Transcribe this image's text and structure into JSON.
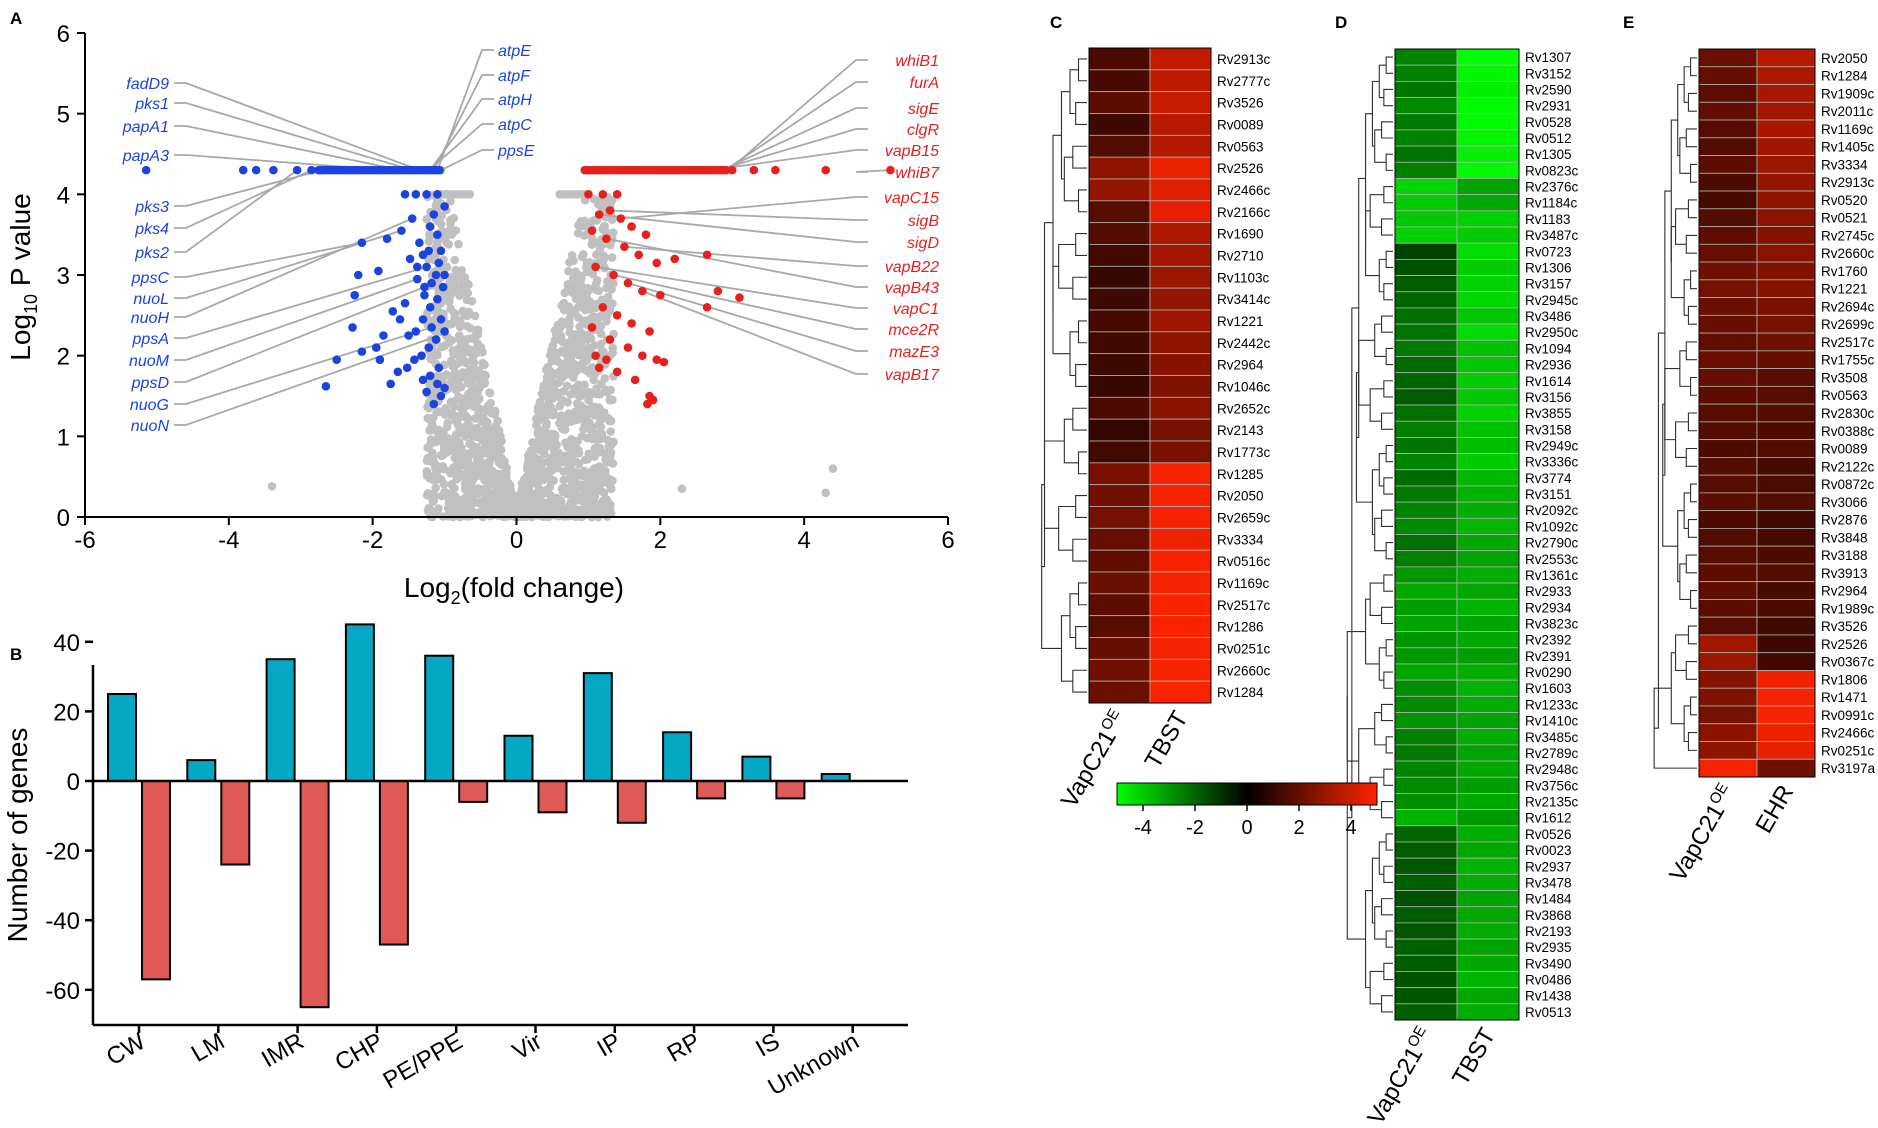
{
  "chart_data": [
    {
      "panel": "A",
      "type": "scatter",
      "title": "",
      "xlabel_base": "Log",
      "xlabel_sub": "2",
      "xlabel_rest": "(fold change)",
      "ylabel_base": "Log",
      "ylabel_sub": "10",
      "ylabel_rest": " P value",
      "xlim": [
        -6,
        6
      ],
      "ylim": [
        0,
        6
      ],
      "xticks": [
        "-6",
        "-4",
        "-2",
        "0",
        "2",
        "4",
        "6"
      ],
      "yticks": [
        "0",
        "1",
        "2",
        "3",
        "4",
        "5",
        "6"
      ],
      "colors": {
        "down": "#1a43e0",
        "up": "#e8201c",
        "ns": "#c0c0c0"
      },
      "down_points": [
        [
          -5.15,
          4.3
        ],
        [
          -3.8,
          4.3
        ],
        [
          -3.62,
          4.3
        ],
        [
          -3.38,
          4.3
        ],
        [
          -3.05,
          4.3
        ],
        [
          -2.85,
          4.3
        ],
        [
          -2.7,
          4.3
        ],
        [
          -1.55,
          4.0
        ],
        [
          -1.4,
          4.0
        ],
        [
          -1.25,
          4.0
        ],
        [
          -1.1,
          4.0
        ],
        [
          -2.15,
          3.4
        ],
        [
          -2.2,
          3.0
        ],
        [
          -1.92,
          3.05
        ],
        [
          -1.8,
          3.45
        ],
        [
          -1.6,
          3.55
        ],
        [
          -1.45,
          3.7
        ],
        [
          -1.35,
          3.4
        ],
        [
          -1.3,
          3.25
        ],
        [
          -1.25,
          3.1
        ],
        [
          -1.2,
          3.6
        ],
        [
          -1.15,
          3.75
        ],
        [
          -1.1,
          3.5
        ],
        [
          -1.05,
          3.3
        ],
        [
          -1.0,
          3.85
        ],
        [
          -1.08,
          3.15
        ],
        [
          -1.18,
          2.9
        ],
        [
          -1.28,
          2.85
        ],
        [
          -1.38,
          2.95
        ],
        [
          -1.55,
          2.65
        ],
        [
          -1.62,
          2.45
        ],
        [
          -1.72,
          2.55
        ],
        [
          -1.85,
          2.25
        ],
        [
          -1.95,
          2.1
        ],
        [
          -2.15,
          2.05
        ],
        [
          -2.25,
          2.75
        ],
        [
          -2.28,
          2.35
        ],
        [
          -1.5,
          2.25
        ],
        [
          -1.4,
          2.3
        ],
        [
          -1.3,
          2.45
        ],
        [
          -1.2,
          2.6
        ],
        [
          -1.1,
          2.7
        ],
        [
          -1.05,
          2.45
        ],
        [
          -1.0,
          2.3
        ],
        [
          -1.12,
          2.2
        ],
        [
          -1.22,
          2.1
        ],
        [
          -1.32,
          2.0
        ],
        [
          -1.42,
          1.95
        ],
        [
          -1.52,
          1.85
        ],
        [
          -1.65,
          1.8
        ],
        [
          -1.75,
          1.65
        ],
        [
          -1.9,
          1.95
        ],
        [
          -2.5,
          1.95
        ],
        [
          -2.65,
          1.62
        ],
        [
          -1.2,
          1.75
        ],
        [
          -1.1,
          1.65
        ],
        [
          -1.05,
          1.5
        ],
        [
          -1.15,
          1.4
        ],
        [
          -1.25,
          1.55
        ],
        [
          -1.3,
          1.7
        ],
        [
          -1.0,
          1.6
        ],
        [
          -1.08,
          1.85
        ],
        [
          -1.18,
          2.35
        ],
        [
          -1.28,
          2.75
        ],
        [
          -1.38,
          3.1
        ],
        [
          -1.48,
          3.2
        ],
        [
          -1.0,
          3.0
        ],
        [
          -1.02,
          2.85
        ],
        [
          -1.12,
          3.0
        ],
        [
          -1.22,
          3.3
        ]
      ],
      "up_points": [
        [
          1.0,
          4.0
        ],
        [
          1.2,
          4.0
        ],
        [
          1.4,
          4.0
        ],
        [
          3.0,
          4.3
        ],
        [
          3.3,
          4.3
        ],
        [
          3.6,
          4.3
        ],
        [
          4.3,
          4.3
        ],
        [
          5.2,
          4.3
        ],
        [
          1.15,
          3.75
        ],
        [
          1.3,
          3.8
        ],
        [
          1.45,
          3.7
        ],
        [
          1.6,
          3.6
        ],
        [
          1.8,
          3.5
        ],
        [
          1.05,
          3.55
        ],
        [
          1.25,
          3.45
        ],
        [
          1.5,
          3.35
        ],
        [
          1.7,
          3.25
        ],
        [
          1.95,
          3.15
        ],
        [
          2.2,
          3.2
        ],
        [
          2.65,
          3.25
        ],
        [
          1.1,
          3.1
        ],
        [
          1.35,
          3.0
        ],
        [
          1.55,
          2.9
        ],
        [
          1.75,
          2.8
        ],
        [
          2.0,
          2.75
        ],
        [
          2.8,
          2.8
        ],
        [
          3.1,
          2.72
        ],
        [
          2.65,
          2.6
        ],
        [
          1.2,
          2.6
        ],
        [
          1.4,
          2.5
        ],
        [
          1.6,
          2.4
        ],
        [
          1.85,
          2.3
        ],
        [
          1.05,
          2.35
        ],
        [
          1.3,
          2.2
        ],
        [
          1.55,
          2.1
        ],
        [
          1.75,
          2.0
        ],
        [
          1.95,
          1.95
        ],
        [
          2.05,
          1.92
        ],
        [
          1.15,
          1.85
        ],
        [
          1.4,
          1.8
        ],
        [
          1.65,
          1.7
        ],
        [
          1.9,
          1.45
        ],
        [
          1.82,
          1.4
        ],
        [
          1.85,
          1.5
        ],
        [
          1.1,
          2.0
        ],
        [
          1.25,
          1.95
        ]
      ],
      "ns_band": [
        [
          -2.75,
          4.3
        ],
        [
          -1.05,
          4.3
        ],
        [
          0.95,
          4.3
        ],
        [
          2.95,
          4.3
        ]
      ],
      "ns_outliers": [
        [
          -3.4,
          0.38
        ],
        [
          2.3,
          0.35
        ],
        [
          4.4,
          0.6
        ],
        [
          4.3,
          0.3
        ]
      ],
      "down_labels": [
        "fadD9",
        "pks1",
        "papA1",
        "papA3",
        "pks3",
        "pks4",
        "pks2",
        "ppsC",
        "nuoL",
        "nuoH",
        "ppsA",
        "nuoM",
        "ppsD",
        "nuoG",
        "nuoN"
      ],
      "mid_labels": [
        "atpE",
        "atpF",
        "atpH",
        "atpC",
        "ppsE"
      ],
      "up_labels": [
        "whiB1",
        "furA",
        "sigE",
        "clgR",
        "vapB15",
        "whiB7",
        "vapC15",
        "sigB",
        "sigD",
        "vapB22",
        "vapB43",
        "vapC1",
        "mce2R",
        "mazE3",
        "vapB17"
      ]
    },
    {
      "panel": "B",
      "type": "bar",
      "title": "",
      "xlabel": "",
      "ylabel": "Number of genes",
      "ylim": [
        -70,
        50
      ],
      "yticks": [
        "-60",
        "-40",
        "-20",
        "0",
        "20",
        "40"
      ],
      "categories": [
        "CW",
        "LM",
        "IMR",
        "CHP",
        "PE/PPE",
        "Vir",
        "IP",
        "RP",
        "IS",
        "Unknown"
      ],
      "series": [
        {
          "name": "up",
          "color": "#05a8c4",
          "values": [
            25,
            6,
            35,
            45,
            36,
            13,
            31,
            14,
            7,
            2
          ]
        },
        {
          "name": "down",
          "color": "#df5a56",
          "values": [
            -57,
            -24,
            -65,
            -47,
            -6,
            -9,
            -12,
            -5,
            -5,
            0
          ]
        }
      ]
    },
    {
      "panel": "C",
      "type": "heatmap",
      "columns": [
        "VapC21",
        "TBST"
      ],
      "column_superscripts": [
        "OE",
        ""
      ],
      "rows": [
        "Rv2913c",
        "Rv2777c",
        "Rv3526",
        "Rv0089",
        "Rv0563",
        "Rv2526",
        "Rv2466c",
        "Rv2166c",
        "Rv1690",
        "Rv2710",
        "Rv1103c",
        "Rv3414c",
        "Rv1221",
        "Rv2442c",
        "Rv2964",
        "Rv1046c",
        "Rv2652c",
        "Rv2143",
        "Rv1773c",
        "Rv1285",
        "Rv2050",
        "Rv2659c",
        "Rv3334",
        "Rv0516c",
        "Rv1169c",
        "Rv2517c",
        "Rv1286",
        "Rv0251c",
        "Rv2660c",
        "Rv1284"
      ],
      "values": [
        [
          1.5,
          3.8
        ],
        [
          1.4,
          3.7
        ],
        [
          1.8,
          3.9
        ],
        [
          1.2,
          3.6
        ],
        [
          1.6,
          3.5
        ],
        [
          2.8,
          4.6
        ],
        [
          2.9,
          4.4
        ],
        [
          1.7,
          4.5
        ],
        [
          1.6,
          3.4
        ],
        [
          1.3,
          3.2
        ],
        [
          1.1,
          3.0
        ],
        [
          1.2,
          2.9
        ],
        [
          1.4,
          3.1
        ],
        [
          1.3,
          2.8
        ],
        [
          1.2,
          2.6
        ],
        [
          1.1,
          2.5
        ],
        [
          1.5,
          2.7
        ],
        [
          1.0,
          2.3
        ],
        [
          1.3,
          2.4
        ],
        [
          2.4,
          4.8
        ],
        [
          2.2,
          4.9
        ],
        [
          2.3,
          4.8
        ],
        [
          2.0,
          4.7
        ],
        [
          1.9,
          4.9
        ],
        [
          2.1,
          4.8
        ],
        [
          1.8,
          4.9
        ],
        [
          1.7,
          4.9
        ],
        [
          2.0,
          4.8
        ],
        [
          2.2,
          4.9
        ],
        [
          2.1,
          4.9
        ]
      ],
      "colorbar": {
        "ticks": [
          "-4",
          "-2",
          "0",
          "2",
          "4"
        ],
        "range": [
          -5,
          5
        ]
      }
    },
    {
      "panel": "D",
      "type": "heatmap",
      "columns": [
        "VapC21",
        "TBST"
      ],
      "column_superscripts": [
        "OE",
        ""
      ],
      "rows": [
        "Rv1307",
        "Rv3152",
        "Rv2590",
        "Rv2931",
        "Rv0528",
        "Rv0512",
        "Rv1305",
        "Rv0823c",
        "Rv2376c",
        "Rv1184c",
        "Rv1183",
        "Rv3487c",
        "Rv0723",
        "Rv1306",
        "Rv3157",
        "Rv2945c",
        "Rv3486",
        "Rv2950c",
        "Rv1094",
        "Rv2936",
        "Rv1614",
        "Rv3156",
        "Rv3855",
        "Rv3158",
        "Rv2949c",
        "Rv3336c",
        "Rv3774",
        "Rv3151",
        "Rv2092c",
        "Rv1092c",
        "Rv2790c",
        "Rv2553c",
        "Rv1361c",
        "Rv2933",
        "Rv2934",
        "Rv3823c",
        "Rv2392",
        "Rv2391",
        "Rv0290",
        "Rv1603",
        "Rv1233c",
        "Rv1410c",
        "Rv3485c",
        "Rv2789c",
        "Rv2948c",
        "Rv3756c",
        "Rv2135c",
        "Rv1612",
        "Rv0526",
        "Rv0023",
        "Rv2937",
        "Rv3478",
        "Rv1484",
        "Rv3868",
        "Rv2193",
        "Rv2935",
        "Rv3490",
        "Rv0486",
        "Rv1438",
        "Rv0513"
      ],
      "values": [
        [
          -2.6,
          -5.0
        ],
        [
          -2.5,
          -4.8
        ],
        [
          -2.3,
          -4.7
        ],
        [
          -2.7,
          -4.9
        ],
        [
          -2.4,
          -4.9
        ],
        [
          -2.6,
          -4.8
        ],
        [
          -2.3,
          -4.7
        ],
        [
          -2.5,
          -4.9
        ],
        [
          -4.2,
          -3.2
        ],
        [
          -4.0,
          -3.3
        ],
        [
          -3.9,
          -4.1
        ],
        [
          -4.1,
          -4.0
        ],
        [
          -1.3,
          -4.3
        ],
        [
          -1.6,
          -4.0
        ],
        [
          -1.8,
          -4.1
        ],
        [
          -2.0,
          -4.2
        ],
        [
          -2.2,
          -3.9
        ],
        [
          -2.3,
          -4.3
        ],
        [
          -2.4,
          -3.8
        ],
        [
          -2.1,
          -3.9
        ],
        [
          -2.0,
          -4.0
        ],
        [
          -1.8,
          -3.9
        ],
        [
          -2.2,
          -4.1
        ],
        [
          -2.5,
          -3.8
        ],
        [
          -2.3,
          -3.7
        ],
        [
          -2.6,
          -4.0
        ],
        [
          -2.1,
          -3.6
        ],
        [
          -2.4,
          -3.5
        ],
        [
          -2.6,
          -3.4
        ],
        [
          -2.7,
          -3.6
        ],
        [
          -2.2,
          -3.3
        ],
        [
          -2.5,
          -3.2
        ],
        [
          -3.0,
          -3.4
        ],
        [
          -3.3,
          -3.3
        ],
        [
          -3.1,
          -3.5
        ],
        [
          -3.2,
          -3.2
        ],
        [
          -2.9,
          -3.3
        ],
        [
          -3.0,
          -3.1
        ],
        [
          -3.3,
          -3.4
        ],
        [
          -2.8,
          -3.5
        ],
        [
          -2.7,
          -3.4
        ],
        [
          -2.9,
          -3.2
        ],
        [
          -2.5,
          -3.4
        ],
        [
          -2.4,
          -3.2
        ],
        [
          -2.6,
          -3.3
        ],
        [
          -2.7,
          -3.1
        ],
        [
          -2.8,
          -3.3
        ],
        [
          -3.5,
          -3.0
        ],
        [
          -2.0,
          -3.4
        ],
        [
          -1.8,
          -3.3
        ],
        [
          -1.7,
          -3.5
        ],
        [
          -1.9,
          -3.4
        ],
        [
          -1.6,
          -3.2
        ],
        [
          -1.8,
          -3.3
        ],
        [
          -1.7,
          -3.4
        ],
        [
          -1.9,
          -3.2
        ],
        [
          -1.8,
          -3.3
        ],
        [
          -1.6,
          -3.5
        ],
        [
          -1.7,
          -3.3
        ],
        [
          -1.9,
          -3.4
        ]
      ]
    },
    {
      "panel": "E",
      "type": "heatmap",
      "columns": [
        "VapC21",
        "EHR"
      ],
      "column_superscripts": [
        "OE",
        ""
      ],
      "rows": [
        "Rv2050",
        "Rv1284",
        "Rv1909c",
        "Rv2011c",
        "Rv1169c",
        "Rv1405c",
        "Rv3334",
        "Rv2913c",
        "Rv0520",
        "Rv0521",
        "Rv2745c",
        "Rv2660c",
        "Rv1760",
        "Rv1221",
        "Rv2694c",
        "Rv2699c",
        "Rv2517c",
        "Rv1755c",
        "Rv3508",
        "Rv0563",
        "Rv2830c",
        "Rv0388c",
        "Rv0089",
        "Rv2122c",
        "Rv0872c",
        "Rv3066",
        "Rv2876",
        "Rv3848",
        "Rv3188",
        "Rv3913",
        "Rv2964",
        "Rv1989c",
        "Rv3526",
        "Rv2526",
        "Rv0367c",
        "Rv1806",
        "Rv1471",
        "Rv0991c",
        "Rv2466c",
        "Rv0251c",
        "Rv3197a"
      ],
      "values": [
        [
          2.1,
          3.6
        ],
        [
          2.0,
          3.4
        ],
        [
          1.8,
          3.3
        ],
        [
          1.9,
          3.2
        ],
        [
          1.7,
          3.3
        ],
        [
          1.6,
          3.1
        ],
        [
          1.8,
          3.0
        ],
        [
          1.5,
          2.9
        ],
        [
          1.4,
          2.8
        ],
        [
          1.6,
          2.7
        ],
        [
          1.9,
          2.6
        ],
        [
          2.0,
          2.7
        ],
        [
          2.2,
          2.5
        ],
        [
          2.3,
          2.6
        ],
        [
          2.1,
          2.4
        ],
        [
          2.0,
          2.3
        ],
        [
          1.9,
          2.2
        ],
        [
          2.1,
          2.0
        ],
        [
          2.0,
          1.8
        ],
        [
          1.8,
          1.7
        ],
        [
          1.7,
          1.6
        ],
        [
          1.6,
          1.5
        ],
        [
          1.5,
          1.6
        ],
        [
          1.6,
          1.4
        ],
        [
          1.7,
          1.5
        ],
        [
          1.8,
          1.6
        ],
        [
          1.5,
          1.3
        ],
        [
          1.6,
          1.4
        ],
        [
          1.7,
          1.5
        ],
        [
          1.8,
          1.6
        ],
        [
          1.9,
          1.4
        ],
        [
          1.8,
          1.5
        ],
        [
          1.7,
          1.3
        ],
        [
          3.2,
          1.2
        ],
        [
          3.0,
          1.3
        ],
        [
          2.6,
          4.7
        ],
        [
          2.5,
          4.8
        ],
        [
          2.3,
          4.9
        ],
        [
          2.7,
          4.6
        ],
        [
          2.8,
          4.5
        ],
        [
          4.8,
          2.2
        ]
      ]
    }
  ],
  "panel_labels": {
    "A": "A",
    "B": "B",
    "C": "C",
    "D": "D",
    "E": "E"
  }
}
